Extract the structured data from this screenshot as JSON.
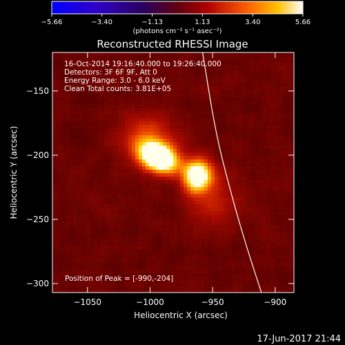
{
  "chart_data": {
    "type": "heatmap",
    "title": "Reconstructed RHESSI Image",
    "xlabel": "Heliocentric X (arcsec)",
    "ylabel": "Heliocentric Y (arcsec)",
    "xlim": [
      -1078,
      -885
    ],
    "ylim": [
      -307,
      -120
    ],
    "x_ticks": [
      -1050,
      -1000,
      -950,
      -900
    ],
    "x_tick_labels": [
      "−1050",
      "−1000",
      "−950",
      "−900"
    ],
    "y_ticks": [
      -150,
      -200,
      -250,
      -300
    ],
    "y_tick_labels": [
      "−150",
      "−200",
      "−250",
      "−300"
    ],
    "colorbar": {
      "min": -5.66,
      "max": 5.66,
      "ticks": [
        -5.66,
        -3.4,
        -1.13,
        1.13,
        3.4,
        5.66
      ],
      "tick_labels": [
        "−5.66",
        "−3.40",
        "−1.13",
        "1.13",
        "3.40",
        "5.66"
      ],
      "units": "(photons cm⁻² s⁻¹ asec⁻²)"
    },
    "annotations": {
      "time": "16-Oct-2014 19:16:40.000 to 19:26:40.000",
      "detectors": "Detectors: 3F 6F 9F, Att 0",
      "energy": "Energy Range: 3.0 - 6.0 keV",
      "clean": "Clean    Total counts: 3.81E+05",
      "peak": "Position of Peak = [-990,-204]"
    },
    "peak": [
      -990,
      -204
    ],
    "sources": [
      {
        "x": -993,
        "y": -202,
        "sx": 12,
        "sy": 8,
        "amp": 5.6,
        "angle": -22
      },
      {
        "x": -962,
        "y": -216,
        "sx": 8,
        "sy": 9,
        "amp": 4.4,
        "angle": 0
      },
      {
        "x": -1002,
        "y": -185,
        "sx": 16,
        "sy": 12,
        "amp": 1.6,
        "angle": 0
      },
      {
        "x": -950,
        "y": -235,
        "sx": 14,
        "sy": 18,
        "amp": 1.2,
        "angle": 0
      }
    ],
    "background_level": 1.9,
    "limb_curve": [
      [
        -958,
        -120
      ],
      [
        -948,
        -180
      ],
      [
        -938,
        -220
      ],
      [
        -925,
        -265
      ],
      [
        -911,
        -307
      ]
    ]
  },
  "footer": {
    "date": "17-Jun-2017 21:44"
  }
}
